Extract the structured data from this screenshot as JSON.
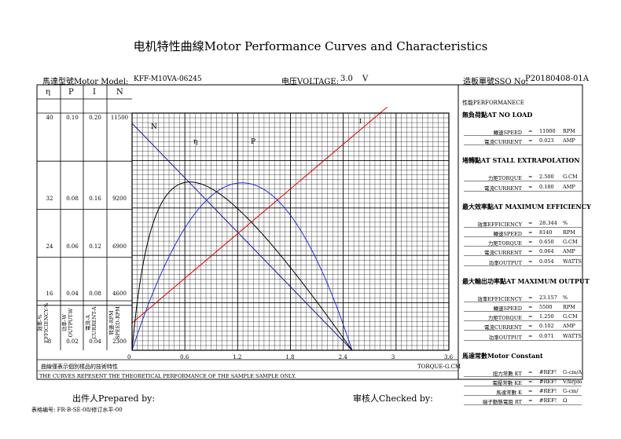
{
  "title": "电机特性曲線Motor Performance Curves and Characteristics",
  "header": {
    "model_label": "馬達型號Motor Model:",
    "model_value": "KFF-M10VA-06245",
    "voltage_label": "电压VOLTAGE:",
    "voltage_value": "3.0",
    "voltage_unit": "V",
    "sso_label": "造板單號SSO No:",
    "sso_value": "P20180408-01A"
  },
  "axes": {
    "symbols": [
      "η",
      "P",
      "I",
      "N"
    ],
    "left_ticks": [
      {
        "eta": "40",
        "p": "0.10",
        "i": "0.20",
        "n": "11500"
      },
      {
        "eta": "32",
        "p": "0.08",
        "i": "0.16",
        "n": "9200"
      },
      {
        "eta": "24",
        "p": "0.06",
        "i": "0.12",
        "n": "6900"
      },
      {
        "eta": "16",
        "p": "0.04",
        "i": "0.08",
        "n": "4600"
      },
      {
        "eta": "8",
        "p": "0.02",
        "i": "0.04",
        "n": "2300"
      }
    ],
    "col_labels": [
      "效率-%",
      "EFFICIENCY-%",
      "功率-W",
      "OUTPUT-W",
      "電流-A",
      "CURRENT-A",
      "转速-RPM",
      "SPEED-RPM"
    ],
    "x_ticks": [
      "0",
      "0.6",
      "1.2",
      "1.8",
      "2.4",
      "3",
      "3.6"
    ],
    "x_label": "TORQUE-G.CM"
  },
  "curve_labels": {
    "n": "N",
    "eta": "η",
    "p": "P",
    "i": "I"
  },
  "chart_data": {
    "type": "line",
    "xlabel": "TORQUE-G.CM",
    "xlim": [
      0,
      3.6
    ],
    "x": [
      0.0,
      0.6,
      1.2,
      1.8,
      2.4,
      2.5
    ],
    "series": [
      {
        "name": "N",
        "unit": "RPM",
        "ylim": [
          0,
          11500
        ],
        "values": [
          11000,
          8360,
          5720,
          3080,
          440,
          0
        ]
      },
      {
        "name": "I",
        "unit": "A",
        "ylim": [
          0,
          0.2
        ],
        "values": [
          0.023,
          0.0607,
          0.0984,
          0.1361,
          0.1737,
          0.18
        ]
      },
      {
        "name": "P",
        "unit": "W",
        "ylim": [
          0,
          0.1
        ],
        "values": [
          0.0,
          0.0567,
          0.071,
          0.0562,
          0.0108,
          0.0
        ]
      },
      {
        "name": "η",
        "unit": "%",
        "ylim": [
          0,
          40
        ],
        "values": [
          0.0,
          28.3,
          23.6,
          13.2,
          1.64,
          0.0
        ]
      }
    ]
  },
  "notes": {
    "cn": "曲線僅表示個別樣品的技術特性",
    "en": "THE CURVES REPESENT THE THEORETICAL PERFORMANCE  OF THE SAMPLE SAMPLE ONLY."
  },
  "panel": {
    "heading": "性能PERFORMANECE",
    "sections": [
      {
        "title": "無負荷點AT NO LOAD",
        "rows": [
          {
            "label": "轉速SPEED",
            "eq": "=",
            "value": "11000",
            "unit": "RPM"
          },
          {
            "label": "電流CURRENT",
            "eq": "=",
            "value": "0.023",
            "unit": "AMP"
          }
        ]
      },
      {
        "title": "堵轉點AT STALL EXTRAPOLATION",
        "rows": [
          {
            "label": "力矩TORQUE",
            "eq": "=",
            "value": "2.500",
            "unit": "G.CM"
          },
          {
            "label": "電流CURRENT",
            "eq": "=",
            "value": "0.180",
            "unit": "AMP"
          }
        ]
      },
      {
        "title": "最大效率點AT MAXIMUM EFFICIENCY",
        "rows": [
          {
            "label": "效率EFFICIENCY",
            "eq": "=",
            "value": "28.344",
            "unit": "%"
          },
          {
            "label": "轉速SPEED",
            "eq": "=",
            "value": "8140",
            "unit": "RPM"
          },
          {
            "label": "力矩TORQUE",
            "eq": "=",
            "value": "0.650",
            "unit": "G.CM"
          },
          {
            "label": "電流CURRENT",
            "eq": "=",
            "value": "0.064",
            "unit": "AMP"
          },
          {
            "label": "功率OUTPUT",
            "eq": "=",
            "value": "0.054",
            "unit": "WATTS"
          }
        ]
      },
      {
        "title": "最大輸出功率點AT MAXIMUM OUTPUT",
        "rows": [
          {
            "label": "效率EFFICIENCY",
            "eq": "=",
            "value": "23.157",
            "unit": "%"
          },
          {
            "label": "轉速SPEED",
            "eq": "=",
            "value": "5500",
            "unit": "RPM"
          },
          {
            "label": "力矩TORQUE",
            "eq": "=",
            "value": "1.250",
            "unit": "G.CM"
          },
          {
            "label": "電流CURRENT",
            "eq": "=",
            "value": "0.102",
            "unit": "AMP"
          },
          {
            "label": "功率OUTPUT",
            "eq": "=",
            "value": "0.071",
            "unit": "WATTS"
          }
        ]
      },
      {
        "title": "馬達常數Motor Constant",
        "rows": [
          {
            "label": "扭力常數 KT",
            "eq": "=",
            "value": "#REF!",
            "unit": "G-cm/A"
          },
          {
            "label": "電壓常數 KE",
            "eq": "=",
            "value": "#REF!",
            "unit": "V/krpm"
          },
          {
            "label": "馬達常數  K",
            "eq": "=",
            "value": "#REF!",
            "unit": "G-cm/"
          },
          {
            "label": "端子動態電阻 RT",
            "eq": "=",
            "value": "#REF!",
            "unit": "Ω"
          }
        ]
      }
    ]
  },
  "footer": {
    "prepared": "出件人Prepared by:",
    "checked": "审核人Checked by:",
    "form_no": "表格编号: FR-B-SE-08/修订水平-00"
  }
}
